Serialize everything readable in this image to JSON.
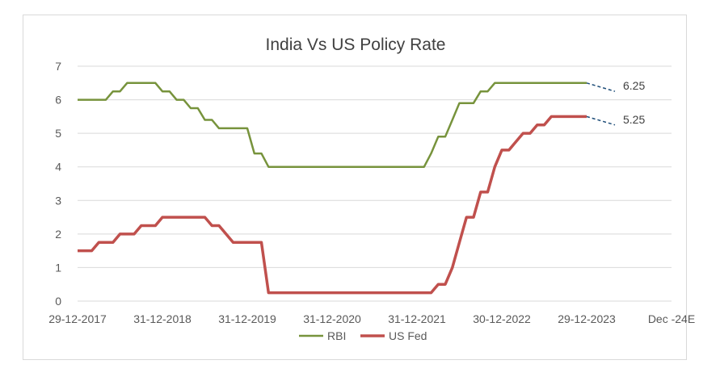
{
  "chart_data": {
    "type": "line",
    "title": "India Vs US Policy Rate",
    "xlabel": "",
    "ylabel": "",
    "ylim": [
      0,
      7
    ],
    "y_ticks": [
      "0",
      "1",
      "2",
      "3",
      "4",
      "5",
      "6",
      "7"
    ],
    "x_ticks": [
      "29-12-2017",
      "31-12-2018",
      "31-12-2019",
      "31-12-2020",
      "31-12-2021",
      "30-12-2022",
      "29-12-2023",
      "Dec -24E"
    ],
    "grid": "horizontal",
    "legend": "bottom",
    "series": [
      {
        "name": "RBI",
        "color": "#77933c",
        "points": [
          [
            0,
            6.0
          ],
          [
            4,
            6.0
          ],
          [
            5,
            6.25
          ],
          [
            6,
            6.25
          ],
          [
            7,
            6.5
          ],
          [
            11,
            6.5
          ],
          [
            12,
            6.25
          ],
          [
            13,
            6.25
          ],
          [
            14,
            6.0
          ],
          [
            15,
            6.0
          ],
          [
            16,
            5.75
          ],
          [
            17,
            5.75
          ],
          [
            18,
            5.4
          ],
          [
            19,
            5.4
          ],
          [
            20,
            5.15
          ],
          [
            24,
            5.15
          ],
          [
            25,
            4.4
          ],
          [
            26,
            4.4
          ],
          [
            27,
            4.0
          ],
          [
            49,
            4.0
          ],
          [
            50,
            4.4
          ],
          [
            51,
            4.9
          ],
          [
            52,
            4.9
          ],
          [
            53,
            5.4
          ],
          [
            54,
            5.9
          ],
          [
            56,
            5.9
          ],
          [
            57,
            6.25
          ],
          [
            58,
            6.25
          ],
          [
            59,
            6.5
          ],
          [
            72,
            6.5
          ]
        ],
        "forecast": [
          [
            72,
            6.5
          ],
          [
            76,
            6.25
          ]
        ],
        "end_label": "6.25"
      },
      {
        "name": "US Fed",
        "color": "#c0504d",
        "points": [
          [
            0,
            1.5
          ],
          [
            2,
            1.5
          ],
          [
            3,
            1.75
          ],
          [
            5,
            1.75
          ],
          [
            6,
            2.0
          ],
          [
            8,
            2.0
          ],
          [
            9,
            2.25
          ],
          [
            11,
            2.25
          ],
          [
            12,
            2.5
          ],
          [
            18,
            2.5
          ],
          [
            19,
            2.25
          ],
          [
            20,
            2.25
          ],
          [
            22,
            1.75
          ],
          [
            26,
            1.75
          ],
          [
            27,
            0.25
          ],
          [
            50,
            0.25
          ],
          [
            51,
            0.5
          ],
          [
            52,
            0.5
          ],
          [
            53,
            1.0
          ],
          [
            54,
            1.75
          ],
          [
            55,
            2.5
          ],
          [
            56,
            2.5
          ],
          [
            57,
            3.25
          ],
          [
            58,
            3.25
          ],
          [
            59,
            4.0
          ],
          [
            60,
            4.5
          ],
          [
            61,
            4.5
          ],
          [
            62,
            4.75
          ],
          [
            63,
            5.0
          ],
          [
            64,
            5.0
          ],
          [
            65,
            5.25
          ],
          [
            66,
            5.25
          ],
          [
            67,
            5.5
          ],
          [
            72,
            5.5
          ]
        ],
        "forecast": [
          [
            72,
            5.5
          ],
          [
            76,
            5.25
          ]
        ],
        "end_label": "5.25"
      }
    ]
  }
}
